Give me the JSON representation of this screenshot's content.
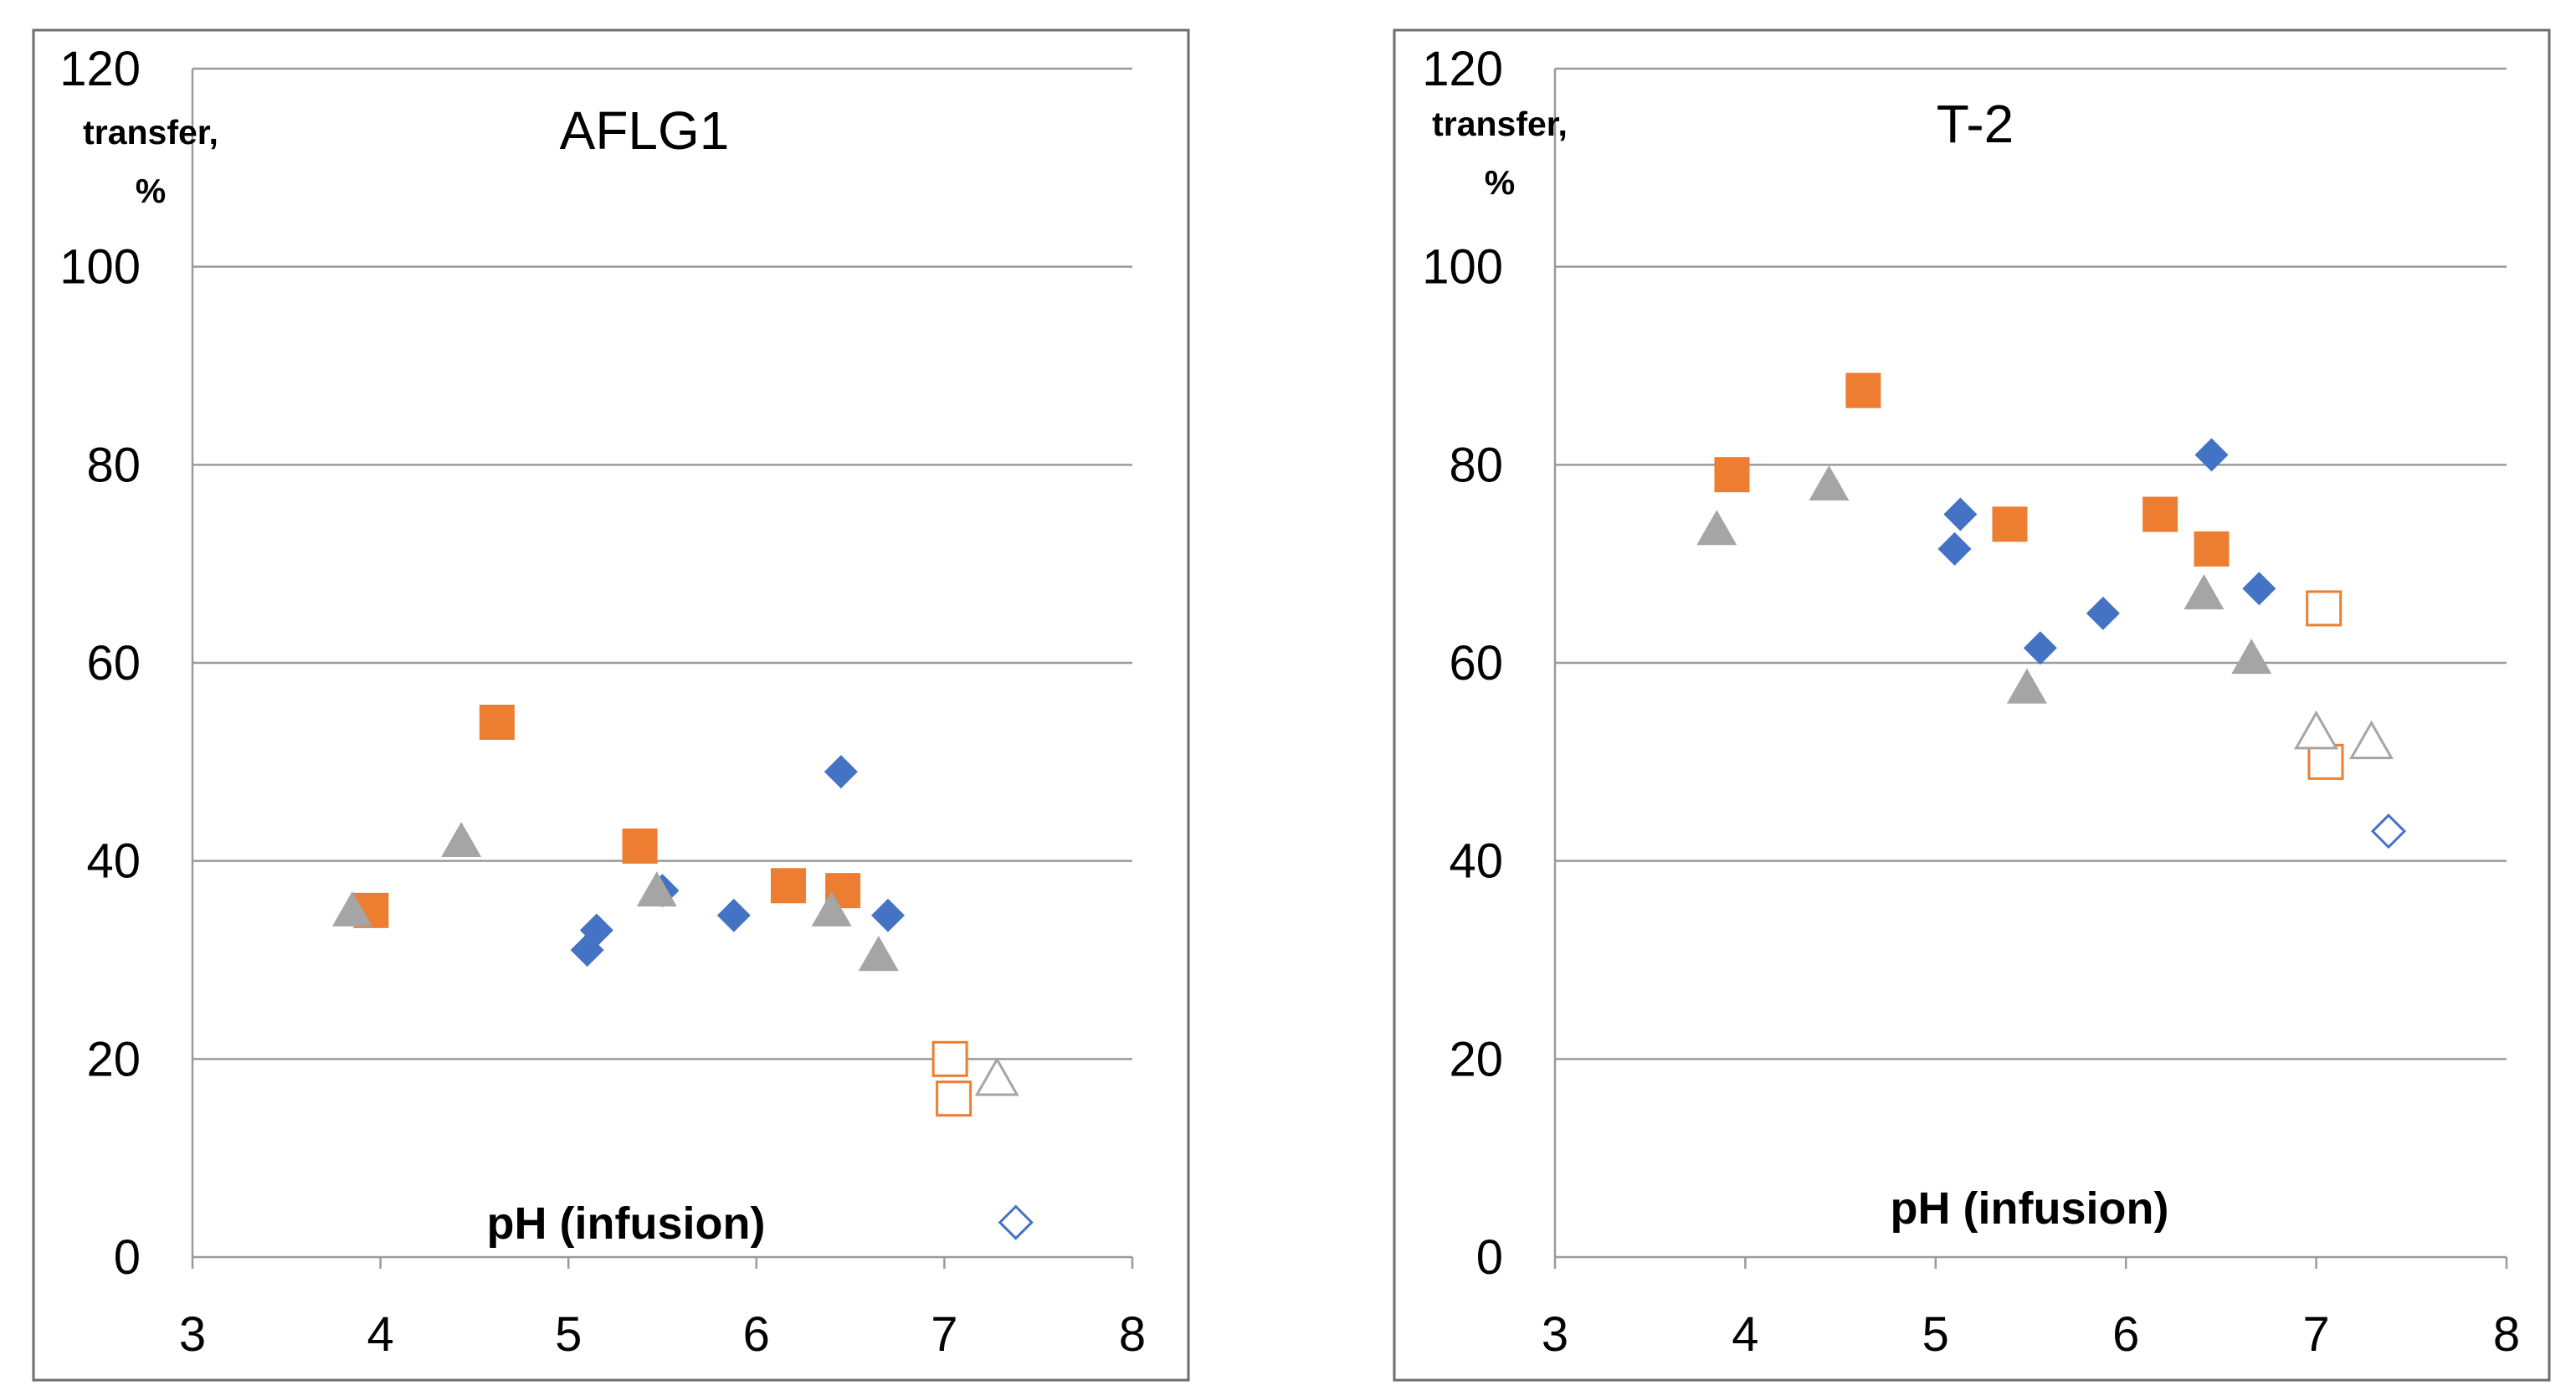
{
  "colors": {
    "blue": "#4472C4",
    "orange": "#ED7D31",
    "gray": "#A5A5A5",
    "grid": "#9A9A9A",
    "frame": "#6E6E6E",
    "text": "#000000"
  },
  "chart_data": [
    {
      "type": "scatter",
      "title": "AFLG1",
      "xlabel": "pH (infusion)",
      "ylabel_line1": "transfer,",
      "ylabel_line2": "%",
      "xlim": [
        3,
        8
      ],
      "ylim": [
        0,
        120
      ],
      "xticks": [
        "3",
        "4",
        "5",
        "6",
        "7",
        "8"
      ],
      "yticks": [
        "0",
        "20",
        "40",
        "60",
        "80",
        "100",
        "120"
      ],
      "series": [
        {
          "marker": "diamond",
          "fill": "solid",
          "color": "blue",
          "points": [
            [
              5.1,
              31
            ],
            [
              5.15,
              33
            ],
            [
              5.5,
              37
            ],
            [
              5.88,
              34.5
            ],
            [
              6.45,
              49
            ],
            [
              6.7,
              34.5
            ]
          ]
        },
        {
          "marker": "square",
          "fill": "solid",
          "color": "orange",
          "points": [
            [
              3.95,
              35
            ],
            [
              4.62,
              54
            ],
            [
              5.38,
              41.5
            ],
            [
              6.17,
              37.5
            ],
            [
              6.46,
              37
            ]
          ]
        },
        {
          "marker": "triangle",
          "fill": "solid",
          "color": "gray",
          "points": [
            [
              3.85,
              35
            ],
            [
              4.43,
              42
            ],
            [
              5.47,
              37
            ],
            [
              6.4,
              35
            ],
            [
              6.65,
              30.5
            ]
          ]
        },
        {
          "marker": "square",
          "fill": "open",
          "color": "orange",
          "points": [
            [
              7.03,
              20
            ],
            [
              7.05,
              16
            ]
          ]
        },
        {
          "marker": "triangle",
          "fill": "open",
          "color": "gray",
          "points": [
            [
              7.28,
              18
            ]
          ]
        },
        {
          "marker": "diamond",
          "fill": "open",
          "color": "blue",
          "points": [
            [
              7.38,
              3.5
            ]
          ]
        }
      ]
    },
    {
      "type": "scatter",
      "title": "T-2",
      "xlabel": "pH (infusion)",
      "ylabel_line1": "transfer,",
      "ylabel_line2": "%",
      "xlim": [
        3,
        8
      ],
      "ylim": [
        0,
        120
      ],
      "xticks": [
        "3",
        "4",
        "5",
        "6",
        "7",
        "8"
      ],
      "yticks": [
        "0",
        "20",
        "40",
        "60",
        "80",
        "100",
        "120"
      ],
      "series": [
        {
          "marker": "diamond",
          "fill": "solid",
          "color": "blue",
          "points": [
            [
              5.1,
              71.5
            ],
            [
              5.13,
              75
            ],
            [
              5.55,
              61.5
            ],
            [
              5.88,
              65
            ],
            [
              6.45,
              81
            ],
            [
              6.7,
              67.5
            ]
          ]
        },
        {
          "marker": "square",
          "fill": "solid",
          "color": "orange",
          "points": [
            [
              3.93,
              79
            ],
            [
              4.62,
              87.5
            ],
            [
              5.39,
              74
            ],
            [
              6.18,
              75
            ],
            [
              6.45,
              71.5
            ]
          ]
        },
        {
          "marker": "triangle",
          "fill": "solid",
          "color": "gray",
          "points": [
            [
              3.85,
              73.5
            ],
            [
              4.44,
              78
            ],
            [
              5.48,
              57.5
            ],
            [
              6.41,
              67
            ],
            [
              6.66,
              60.5
            ]
          ]
        },
        {
          "marker": "square",
          "fill": "open",
          "color": "orange",
          "points": [
            [
              7.04,
              65.5
            ],
            [
              7.05,
              50
            ]
          ]
        },
        {
          "marker": "triangle",
          "fill": "open",
          "color": "gray",
          "points": [
            [
              7.0,
              53
            ],
            [
              7.29,
              52
            ]
          ]
        },
        {
          "marker": "diamond",
          "fill": "open",
          "color": "blue",
          "points": [
            [
              7.38,
              43
            ]
          ]
        }
      ]
    }
  ]
}
